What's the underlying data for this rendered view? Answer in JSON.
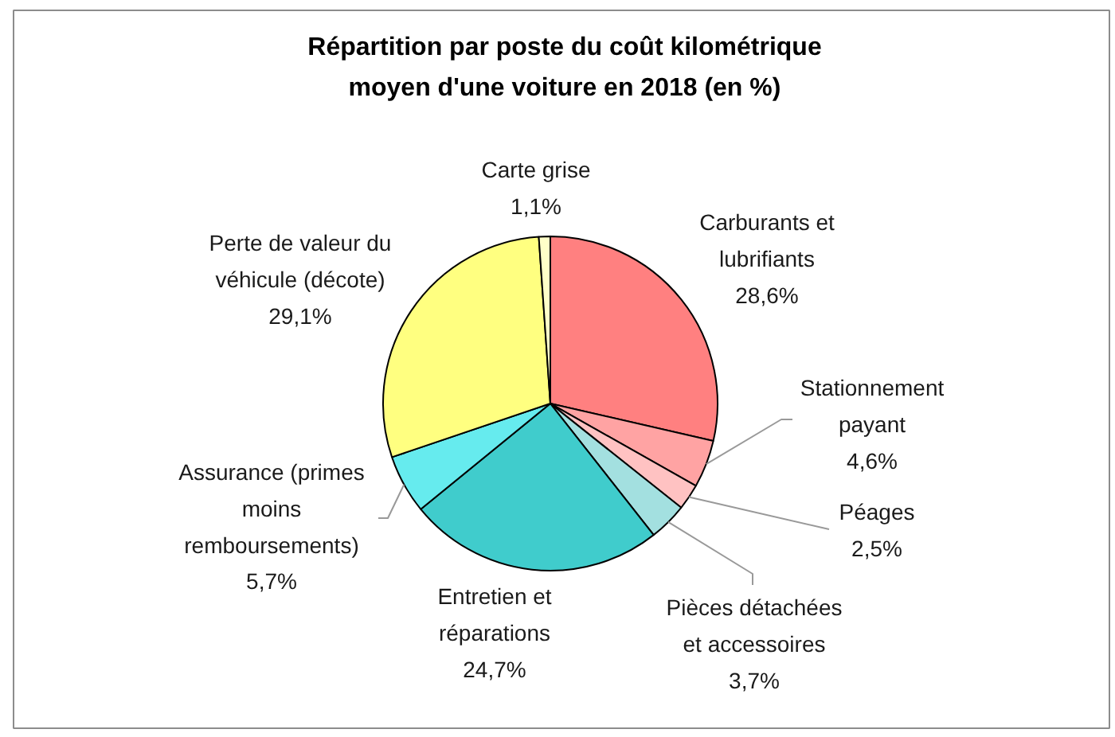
{
  "chart_data": {
    "type": "pie",
    "title": "Répartition par poste du coût kilométrique moyen d'une voiture en 2018 (en %)",
    "categories": [
      "Carburants et lubrifiants",
      "Stationnement payant",
      "Péages",
      "Pièces détachées et accessoires",
      "Entretien et réparations",
      "Assurance (primes moins remboursements)",
      "Perte de valeur du véhicule (décote)",
      "Carte grise"
    ],
    "values": [
      28.6,
      4.6,
      2.5,
      3.7,
      24.7,
      5.7,
      29.1,
      1.1
    ],
    "colors": [
      "#ff8080",
      "#ffa3a3",
      "#ffc2c2",
      "#a3e0e0",
      "#40cccc",
      "#66ebee",
      "#ffff80",
      "#ffffc8"
    ],
    "value_labels": [
      "28,6%",
      "4,6%",
      "2,5%",
      "3,7%",
      "24,7%",
      "5,7%",
      "29,1%",
      "1,1%"
    ]
  }
}
